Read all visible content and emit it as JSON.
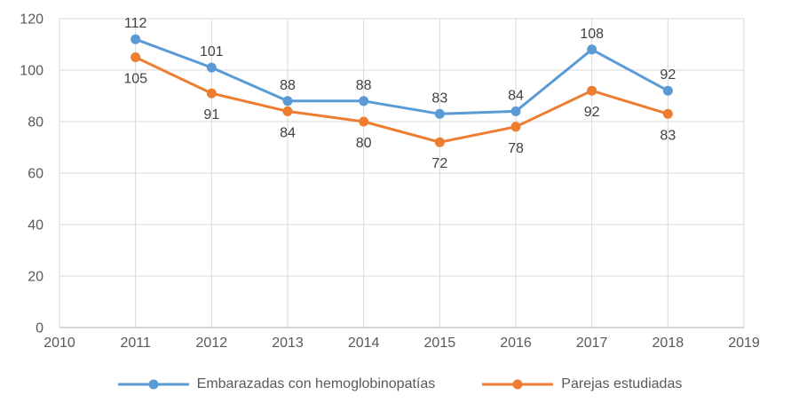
{
  "colors": {
    "series_blue": "#5B9BD5",
    "series_orange": "#ED7D31",
    "gridline": "#D9D9D9",
    "axis_line": "#BFBFBF",
    "tick_label": "#595959",
    "data_label": "#404040",
    "background": "#FFFFFF"
  },
  "chart_data": {
    "type": "line",
    "title": "",
    "xlabel": "",
    "ylabel": "",
    "x": [
      2011,
      2012,
      2013,
      2014,
      2015,
      2016,
      2017,
      2018
    ],
    "series": [
      {
        "name": "Embarazadas con hemoglobinopatías",
        "color": "#5B9BD5",
        "values": [
          112,
          101,
          88,
          88,
          83,
          84,
          108,
          92
        ],
        "marker": "circle",
        "data_labels": "above"
      },
      {
        "name": "Parejas estudiadas",
        "color": "#ED7D31",
        "values": [
          105,
          91,
          84,
          80,
          72,
          78,
          92,
          83
        ],
        "marker": "circle",
        "data_labels": "below"
      }
    ],
    "x_axis": {
      "min": 2010,
      "max": 2019,
      "ticks": [
        2010,
        2011,
        2012,
        2013,
        2014,
        2015,
        2016,
        2017,
        2018,
        2019
      ]
    },
    "y_axis": {
      "min": 0,
      "max": 120,
      "ticks": [
        0,
        20,
        40,
        60,
        80,
        100,
        120
      ]
    },
    "grid": true,
    "legend_position": "bottom"
  }
}
